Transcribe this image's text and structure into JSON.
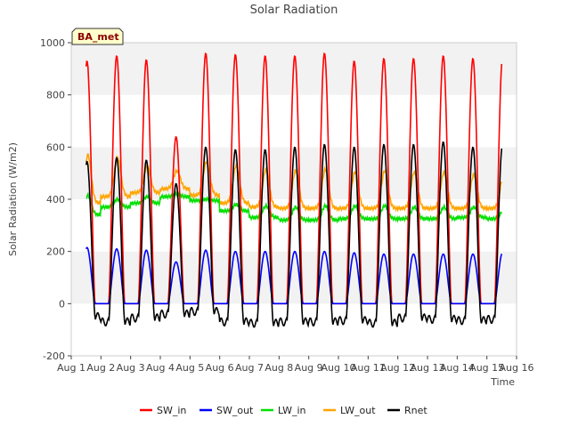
{
  "chart_data": {
    "type": "line",
    "title": "Solar Radiation",
    "xlabel": "Time",
    "ylabel": "Solar Radiation (W/m2)",
    "badge": "BA_met",
    "ylim": [
      -200,
      1000
    ],
    "xlim": [
      1,
      16
    ],
    "yticks": [
      -200,
      0,
      200,
      400,
      600,
      800,
      1000
    ],
    "xticks": [
      1,
      2,
      3,
      4,
      5,
      6,
      7,
      8,
      9,
      10,
      11,
      12,
      13,
      14,
      15,
      16
    ],
    "xtick_labels": [
      "Aug 1",
      "Aug 2",
      "Aug 3",
      "Aug 4",
      "Aug 5",
      "Aug 6",
      "Aug 7",
      "Aug 8",
      "Aug 9",
      "Aug 10",
      "Aug 11",
      "Aug 12",
      "Aug 13",
      "Aug 14",
      "Aug 15",
      "Aug 16"
    ],
    "grid": "horizontal bands",
    "legend_position": "bottom",
    "x_start": 1.5,
    "x_end": 15.5,
    "daily_peaks": {
      "days": [
        1,
        2,
        3,
        4,
        5,
        6,
        7,
        8,
        9,
        10,
        11,
        12,
        13,
        14,
        15
      ],
      "SW_in": [
        930,
        950,
        935,
        640,
        960,
        955,
        950,
        950,
        960,
        930,
        940,
        940,
        950,
        940,
        940
      ],
      "SW_out": [
        215,
        210,
        205,
        160,
        205,
        200,
        200,
        200,
        200,
        195,
        190,
        190,
        190,
        190,
        195
      ],
      "LW_in": [
        415,
        400,
        410,
        420,
        400,
        380,
        375,
        370,
        375,
        375,
        375,
        370,
        370,
        370,
        355
      ],
      "LW_out": [
        570,
        560,
        525,
        510,
        545,
        530,
        515,
        510,
        515,
        505,
        510,
        505,
        505,
        495,
        490
      ],
      "Rnet": [
        545,
        560,
        550,
        460,
        600,
        590,
        590,
        600,
        610,
        600,
        610,
        610,
        620,
        600,
        610
      ]
    },
    "night_levels": {
      "SW_in": 0,
      "SW_out": 0,
      "LW_in": [
        340,
        370,
        385,
        410,
        395,
        355,
        330,
        320,
        320,
        325,
        325,
        325,
        325,
        330,
        325
      ],
      "LW_out": [
        385,
        410,
        425,
        440,
        415,
        385,
        370,
        365,
        365,
        365,
        365,
        365,
        365,
        365,
        365
      ],
      "Rnet": [
        -50,
        -70,
        -55,
        -40,
        -30,
        -70,
        -75,
        -70,
        -70,
        -65,
        -75,
        -55,
        -60,
        -65,
        -60
      ]
    },
    "series": [
      {
        "name": "SW_in",
        "color": "#ff0000"
      },
      {
        "name": "SW_out",
        "color": "#0000ff"
      },
      {
        "name": "LW_in",
        "color": "#00e000"
      },
      {
        "name": "LW_out",
        "color": "#ffa500"
      },
      {
        "name": "Rnet",
        "color": "#000000"
      }
    ]
  }
}
